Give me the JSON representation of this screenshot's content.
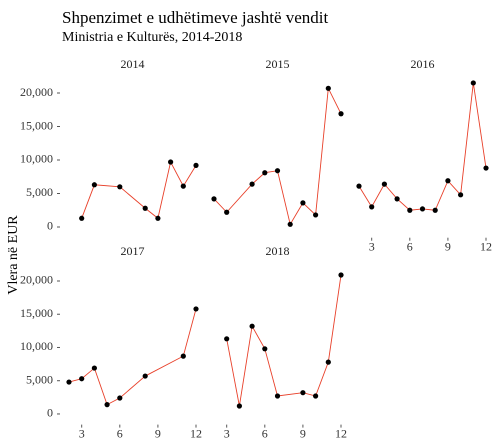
{
  "chart_data": {
    "type": "line",
    "title": "Shpenzimet e udhëtimeve jashtë vendit",
    "subtitle": "Ministria e Kulturës, 2014-2018",
    "ylabel": "Vlera në EUR",
    "color": "#e8402a",
    "point_color": "#000000",
    "xlim": [
      1.45,
      12.55
    ],
    "xticks": [
      3,
      6,
      9,
      12
    ],
    "ylim": [
      -1300,
      22300
    ],
    "yticks": [
      0,
      {
        "value": 5000,
        "label": "5,000"
      },
      {
        "value": 10000,
        "label": "10,000"
      },
      {
        "value": 15000,
        "label": "15,000"
      },
      {
        "value": 20000,
        "label": "20,000"
      }
    ],
    "facets": [
      {
        "title": "2014",
        "x": [
          3,
          4,
          6,
          8,
          9,
          10,
          11,
          12
        ],
        "values": [
          1300,
          6300,
          6000,
          2800,
          1300,
          9700,
          6100,
          9200
        ]
      },
      {
        "title": "2015",
        "x": [
          2,
          3,
          5,
          6,
          7,
          8,
          9,
          10,
          11,
          12
        ],
        "values": [
          4200,
          2200,
          6400,
          8100,
          8400,
          400,
          3600,
          1800,
          20700,
          16900
        ]
      },
      {
        "title": "2016",
        "x": [
          2,
          3,
          4,
          5,
          6,
          7,
          8,
          9,
          10,
          11,
          12
        ],
        "values": [
          6100,
          3000,
          6400,
          4200,
          2500,
          2700,
          2500,
          6900,
          4800,
          21500,
          8800
        ]
      },
      {
        "title": "2017",
        "x": [
          2,
          3,
          4,
          5,
          6,
          8,
          11,
          12
        ],
        "values": [
          4800,
          5300,
          6900,
          1400,
          2400,
          5700,
          8700,
          15800
        ]
      },
      {
        "title": "2018",
        "x": [
          3,
          4,
          5,
          6,
          7,
          9,
          10,
          11,
          12
        ],
        "values": [
          11300,
          1200,
          13200,
          9800,
          2700,
          3200,
          2700,
          7800,
          20900
        ]
      }
    ]
  }
}
